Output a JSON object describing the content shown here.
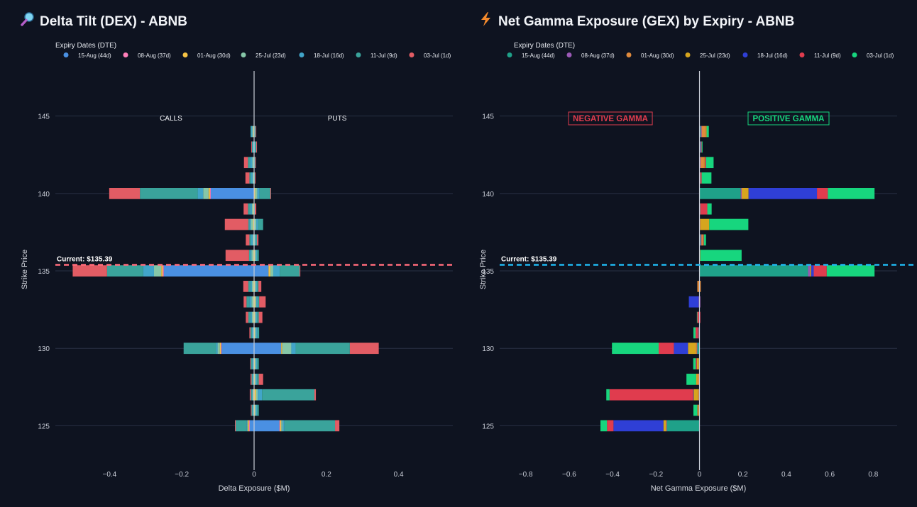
{
  "left": {
    "title": "Delta Tilt (DEX) - ABNB",
    "icon": "magnifier-icon",
    "legend_title": "Expiry Dates (DTE)",
    "current_label": "Current: $135.39",
    "annot_left": "CALLS",
    "annot_right": "PUTS",
    "xlabel": "Delta Exposure ($M)",
    "ylabel": "Strike Price"
  },
  "right": {
    "title": "Net Gamma Exposure (GEX) by Expiry - ABNB",
    "icon": "lightning-icon",
    "legend_title": "Expiry Dates (DTE)",
    "current_label": "Current: $135.39",
    "annot_left": "NEGATIVE GAMMA",
    "annot_right": "POSITIVE GAMMA",
    "xlabel": "Net Gamma Exposure ($M)",
    "ylabel": "Strike Price"
  },
  "chart_data": [
    {
      "type": "bar",
      "orientation": "horizontal",
      "stacked": true,
      "title": "Delta Tilt (DEX) - ABNB",
      "xlabel": "Delta Exposure ($M)",
      "ylabel": "Strike Price",
      "xlim": [
        -0.55,
        0.55
      ],
      "ylim": [
        122.5,
        147
      ],
      "x_ticks": [
        -0.4,
        -0.2,
        0,
        0.2,
        0.4
      ],
      "x_tick_labels": [
        "−0.4",
        "−0.2",
        "0",
        "0.2",
        "0.4"
      ],
      "y_ticks": [
        125,
        130,
        135,
        140,
        145
      ],
      "y_tick_labels": [
        "125",
        "130",
        "135",
        "140",
        "145"
      ],
      "current_price": 135.39,
      "current_line_color": "#ff6b7a",
      "legend_position": "top-left",
      "grid": true,
      "strikes": [
        144,
        143,
        142,
        141,
        140,
        139,
        138,
        137,
        136,
        135,
        134,
        133,
        132,
        131,
        130,
        129,
        128,
        127,
        126,
        125
      ],
      "series": [
        {
          "name": "15-Aug (44d)",
          "color": "#4a90e2",
          "negative": [
            0,
            0,
            0,
            0,
            0.12,
            0,
            0,
            0,
            0,
            0.25,
            0,
            0,
            0,
            0,
            0.09,
            0,
            0,
            0,
            0,
            0.012
          ],
          "positive": [
            0,
            0,
            0,
            0,
            0,
            0,
            0,
            0,
            0,
            0.04,
            0,
            0,
            0,
            0,
            0.075,
            0,
            0,
            0,
            0,
            0.07
          ]
        },
        {
          "name": "08-Aug (37d)",
          "color": "#ff7eb9",
          "negative": [
            0,
            0,
            0,
            0,
            0.002,
            0,
            0,
            0,
            0,
            0.003,
            0,
            0,
            0,
            0,
            0.002,
            0,
            0,
            0,
            0,
            0.002
          ],
          "positive": [
            0,
            0,
            0,
            0,
            0,
            0,
            0,
            0,
            0,
            0,
            0,
            0,
            0,
            0,
            0,
            0,
            0,
            0,
            0,
            0.002
          ]
        },
        {
          "name": "01-Aug (30d)",
          "color": "#f6c344",
          "negative": [
            0.002,
            0,
            0,
            0,
            0.004,
            0.002,
            0.003,
            0,
            0.002,
            0.004,
            0.002,
            0.002,
            0.002,
            0,
            0.003,
            0,
            0,
            0.002,
            0,
            0.003
          ],
          "positive": [
            0,
            0,
            0,
            0,
            0.003,
            0,
            0,
            0,
            0.002,
            0.005,
            0.002,
            0.003,
            0.002,
            0.002,
            0.003,
            0.002,
            0.002,
            0.005,
            0.002,
            0.003
          ]
        },
        {
          "name": "25-Jul (23d)",
          "color": "#86c7a8",
          "negative": [
            0.003,
            0.002,
            0.005,
            0.004,
            0.015,
            0.004,
            0.006,
            0.004,
            0.005,
            0.02,
            0.004,
            0.005,
            0.004,
            0.003,
            0.006,
            0.002,
            0.002,
            0.002,
            0.002,
            0.002
          ],
          "positive": [
            0,
            0,
            0,
            0,
            0.006,
            0,
            0.006,
            0.003,
            0.003,
            0.008,
            0.003,
            0.003,
            0.003,
            0.003,
            0.025,
            0.003,
            0.003,
            0.005,
            0.003,
            0.004
          ]
        },
        {
          "name": "18-Jul (16d)",
          "color": "#41a5c9",
          "negative": [
            0.003,
            0.002,
            0.006,
            0.004,
            0.015,
            0.005,
            0.004,
            0.004,
            0.004,
            0.03,
            0.004,
            0.006,
            0.004,
            0.003,
            0.004,
            0.003,
            0.002,
            0.002,
            0.002,
            0.002
          ],
          "positive": [
            0,
            0.002,
            0,
            0,
            0.006,
            0,
            0.005,
            0.002,
            0.003,
            0.018,
            0.003,
            0.004,
            0.003,
            0.004,
            0.012,
            0.003,
            0.003,
            0.012,
            0.003,
            0.005
          ]
        },
        {
          "name": "11-Jul (9d)",
          "color": "#3aa39b",
          "negative": [
            0.002,
            0.002,
            0.006,
            0.005,
            0.16,
            0.006,
            0.003,
            0.005,
            0.003,
            0.1,
            0.006,
            0.008,
            0.006,
            0.004,
            0.09,
            0.004,
            0.003,
            0.003,
            0.003,
            0.03
          ],
          "positive": [
            0.004,
            0.004,
            0.003,
            0.002,
            0.03,
            0.002,
            0.014,
            0.003,
            0.005,
            0.055,
            0.004,
            0.004,
            0.005,
            0.005,
            0.15,
            0.005,
            0.005,
            0.145,
            0.005,
            0.14
          ]
        },
        {
          "name": "03-Jul (1d)",
          "color": "#e25c64",
          "negative": [
            0,
            0.002,
            0.011,
            0.011,
            0.085,
            0.012,
            0.065,
            0.01,
            0.065,
            0.095,
            0.014,
            0.008,
            0.007,
            0.003,
            0,
            0.002,
            0.003,
            0.003,
            0.002,
            0.002
          ],
          "positive": [
            0.002,
            0.002,
            0.002,
            0.002,
            0.002,
            0.004,
            0,
            0.004,
            0,
            0.002,
            0.008,
            0.018,
            0.01,
            0,
            0.08,
            0,
            0.012,
            0.004,
            0,
            0.012
          ]
        }
      ]
    },
    {
      "type": "bar",
      "orientation": "horizontal",
      "stacked": true,
      "title": "Net Gamma Exposure (GEX) by Expiry - ABNB",
      "xlabel": "Net Gamma Exposure ($M)",
      "ylabel": "Strike Price",
      "xlim": [
        -0.92,
        0.91
      ],
      "ylim": [
        122.5,
        147
      ],
      "x_ticks": [
        -0.8,
        -0.6,
        -0.4,
        -0.2,
        0,
        0.2,
        0.4,
        0.6,
        0.8
      ],
      "x_tick_labels": [
        "−0.8",
        "−0.6",
        "−0.4",
        "−0.2",
        "0",
        "0.2",
        "0.4",
        "0.6",
        "0.8"
      ],
      "y_ticks": [
        125,
        130,
        135,
        140,
        145
      ],
      "y_tick_labels": [
        "125",
        "130",
        "135",
        "140",
        "145"
      ],
      "current_price": 135.39,
      "current_line_color": "#1fb8f0",
      "legend_position": "top-left",
      "grid": true,
      "strikes": [
        144,
        143,
        142,
        141,
        140,
        139,
        138,
        137,
        136,
        135,
        134,
        133,
        132,
        131,
        130,
        129,
        128,
        127,
        126,
        125
      ],
      "series": [
        {
          "name": "15-Aug (44d)",
          "color": "#1fa189",
          "negative": [
            0,
            0,
            0,
            0,
            0,
            0,
            0,
            0,
            0,
            0,
            0,
            0,
            0,
            0,
            0.01,
            0,
            0,
            0,
            0,
            0.15
          ],
          "positive": [
            0.006,
            0.004,
            0,
            0,
            0.19,
            0,
            0,
            0.005,
            0,
            0.5,
            0,
            0,
            0,
            0,
            0,
            0,
            0,
            0,
            0,
            0
          ]
        },
        {
          "name": "08-Aug (37d)",
          "color": "#9b59b6",
          "negative": [
            0,
            0,
            0,
            0,
            0,
            0,
            0,
            0,
            0,
            0,
            0,
            0.004,
            0,
            0,
            0.002,
            0,
            0,
            0.002,
            0,
            0.002
          ],
          "positive": [
            0.004,
            0.004,
            0.005,
            0.004,
            0.004,
            0.004,
            0.002,
            0.004,
            0,
            0.008,
            0,
            0.004,
            0,
            0,
            0,
            0,
            0,
            0,
            0,
            0
          ]
        },
        {
          "name": "01-Aug (30d)",
          "color": "#e08a3c",
          "negative": [
            0,
            0,
            0,
            0,
            0,
            0,
            0,
            0,
            0,
            0,
            0.01,
            0,
            0,
            0.004,
            0.006,
            0.004,
            0.01,
            0.005,
            0.004,
            0.002
          ],
          "positive": [
            0.02,
            0,
            0.016,
            0.002,
            0.002,
            0.002,
            0.003,
            0.008,
            0.002,
            0.003,
            0.006,
            0,
            0,
            0,
            0,
            0,
            0,
            0,
            0,
            0
          ]
        },
        {
          "name": "25-Jul (23d)",
          "color": "#d6a51e",
          "negative": [
            0,
            0,
            0,
            0,
            0,
            0,
            0,
            0,
            0,
            0,
            0,
            0,
            0,
            0,
            0.035,
            0.008,
            0.005,
            0.02,
            0.004,
            0.012
          ],
          "positive": [
            0.003,
            0,
            0.003,
            0,
            0.03,
            0,
            0.04,
            0,
            0.002,
            0.003,
            0,
            0,
            0,
            0,
            0,
            0,
            0,
            0,
            0,
            0
          ]
        },
        {
          "name": "18-Jul (16d)",
          "color": "#2f3fd6",
          "negative": [
            0,
            0,
            0,
            0,
            0,
            0,
            0,
            0,
            0,
            0,
            0,
            0.045,
            0,
            0.002,
            0.065,
            0,
            0,
            0.002,
            0,
            0.23
          ],
          "positive": [
            0,
            0,
            0,
            0,
            0.315,
            0,
            0,
            0,
            0,
            0.012,
            0,
            0,
            0,
            0,
            0,
            0,
            0,
            0,
            0,
            0
          ]
        },
        {
          "name": "11-Jul (9d)",
          "color": "#e03c4e",
          "negative": [
            0,
            0,
            0,
            0,
            0,
            0,
            0,
            0,
            0,
            0,
            0,
            0,
            0.01,
            0.012,
            0.07,
            0.005,
            0,
            0.385,
            0.002,
            0.03
          ],
          "positive": [
            0,
            0.002,
            0.006,
            0.004,
            0.05,
            0.03,
            0,
            0.003,
            0,
            0.06,
            0,
            0,
            0.004,
            0,
            0,
            0,
            0,
            0,
            0,
            0
          ]
        },
        {
          "name": "03-Jul (1d)",
          "color": "#17d67e",
          "negative": [
            0,
            0,
            0,
            0,
            0,
            0,
            0,
            0,
            0,
            0,
            0,
            0,
            0.002,
            0.01,
            0.215,
            0.012,
            0.045,
            0.015,
            0.018,
            0.03
          ],
          "positive": [
            0.01,
            0.004,
            0.035,
            0.045,
            0.215,
            0.02,
            0.18,
            0.01,
            0.19,
            0.22,
            0,
            0,
            0,
            0,
            0,
            0,
            0,
            0,
            0,
            0
          ]
        }
      ]
    }
  ]
}
